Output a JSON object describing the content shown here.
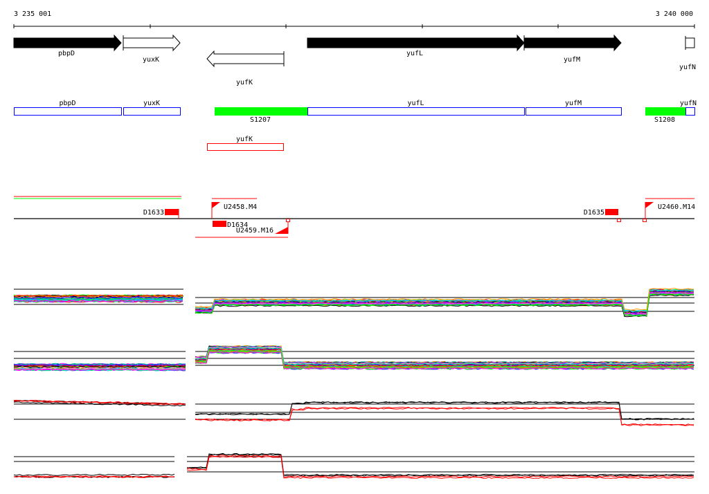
{
  "axis": {
    "start_label": "3 235 001",
    "end_label": "3 240 000"
  },
  "genes": [
    {
      "name": "pbpD",
      "strand": "+",
      "fill": "black"
    },
    {
      "name": "yuxK",
      "strand": "+",
      "fill": "open"
    },
    {
      "name": "yufK",
      "strand": "-",
      "fill": "open"
    },
    {
      "name": "yufL",
      "strand": "+",
      "fill": "black"
    },
    {
      "name": "yufM",
      "strand": "+",
      "fill": "black"
    },
    {
      "name": "yufN",
      "strand": "+",
      "fill": "open"
    }
  ],
  "annot_boxes": [
    "pbpD",
    "yuxK",
    "yufL",
    "yufM",
    "yufN"
  ],
  "segments": [
    "S1207",
    "S1208"
  ],
  "antisense_box": "yufK",
  "features": {
    "d1633": "D1633",
    "d1634": "D1634",
    "d1635": "D1635",
    "u2458": "U2458.M4",
    "u2459": "U2459.M16",
    "u2460": "U2460.M14"
  },
  "colors": {
    "blue": "#0000ff",
    "green": "#00ff00",
    "red": "#ff0000",
    "black": "#000000"
  }
}
